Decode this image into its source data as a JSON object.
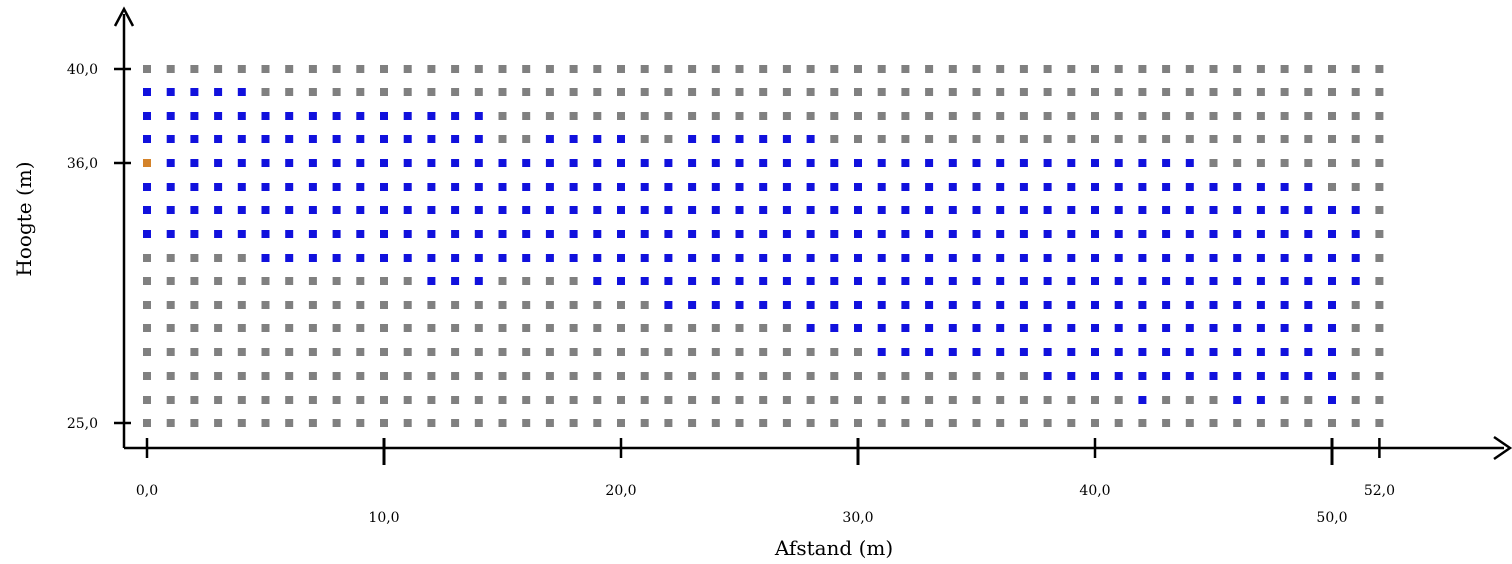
{
  "chart_data": {
    "type": "scatter",
    "xlabel": "Afstand (m)",
    "ylabel": "Hoogte (m)",
    "x_tick_labels": [
      {
        "value": 0,
        "label": "0,0",
        "row": 0
      },
      {
        "value": 10,
        "label": "10,0",
        "row": 1
      },
      {
        "value": 20,
        "label": "20,0",
        "row": 0
      },
      {
        "value": 30,
        "label": "30,0",
        "row": 1
      },
      {
        "value": 40,
        "label": "40,0",
        "row": 0
      },
      {
        "value": 50,
        "label": "50,0",
        "row": 1
      },
      {
        "value": 52,
        "label": "52,0",
        "row": 0
      }
    ],
    "y_tick_labels": [
      {
        "value": 25,
        "label": "25,0"
      },
      {
        "value": 36,
        "label": "36,0"
      },
      {
        "value": 40,
        "label": "40,0"
      }
    ],
    "grid_x_step": 1,
    "grid_columns": 53,
    "row_heights": [
      40,
      39,
      38,
      37,
      36,
      35,
      34,
      33,
      32,
      31,
      30,
      29,
      28,
      27,
      26,
      25
    ],
    "colors": {
      "gray": "#808080",
      "blue": "#1111dd",
      "orange": "#d4832a"
    },
    "blue_segments": [
      {
        "y": 39,
        "ranges": [
          [
            0,
            4
          ]
        ]
      },
      {
        "y": 38,
        "ranges": [
          [
            0,
            14
          ]
        ]
      },
      {
        "y": 37,
        "ranges": [
          [
            0,
            14
          ],
          [
            17,
            20
          ],
          [
            23,
            28
          ]
        ]
      },
      {
        "y": 36,
        "ranges": [
          [
            1,
            44
          ]
        ]
      },
      {
        "y": 35,
        "ranges": [
          [
            0,
            49
          ]
        ]
      },
      {
        "y": 34,
        "ranges": [
          [
            0,
            51
          ]
        ]
      },
      {
        "y": 33,
        "ranges": [
          [
            0,
            51
          ]
        ]
      },
      {
        "y": 32,
        "ranges": [
          [
            5,
            51
          ]
        ]
      },
      {
        "y": 31,
        "ranges": [
          [
            12,
            14
          ],
          [
            19,
            51
          ]
        ]
      },
      {
        "y": 30,
        "ranges": [
          [
            22,
            50
          ]
        ]
      },
      {
        "y": 29,
        "ranges": [
          [
            28,
            50
          ]
        ]
      },
      {
        "y": 28,
        "ranges": [
          [
            31,
            50
          ]
        ]
      },
      {
        "y": 27,
        "ranges": [
          [
            38,
            50
          ]
        ]
      },
      {
        "y": 26,
        "ranges": [
          [
            42,
            42
          ],
          [
            46,
            47
          ],
          [
            50,
            50
          ]
        ]
      }
    ],
    "orange_points": [
      {
        "x": 0,
        "y": 36
      }
    ]
  }
}
